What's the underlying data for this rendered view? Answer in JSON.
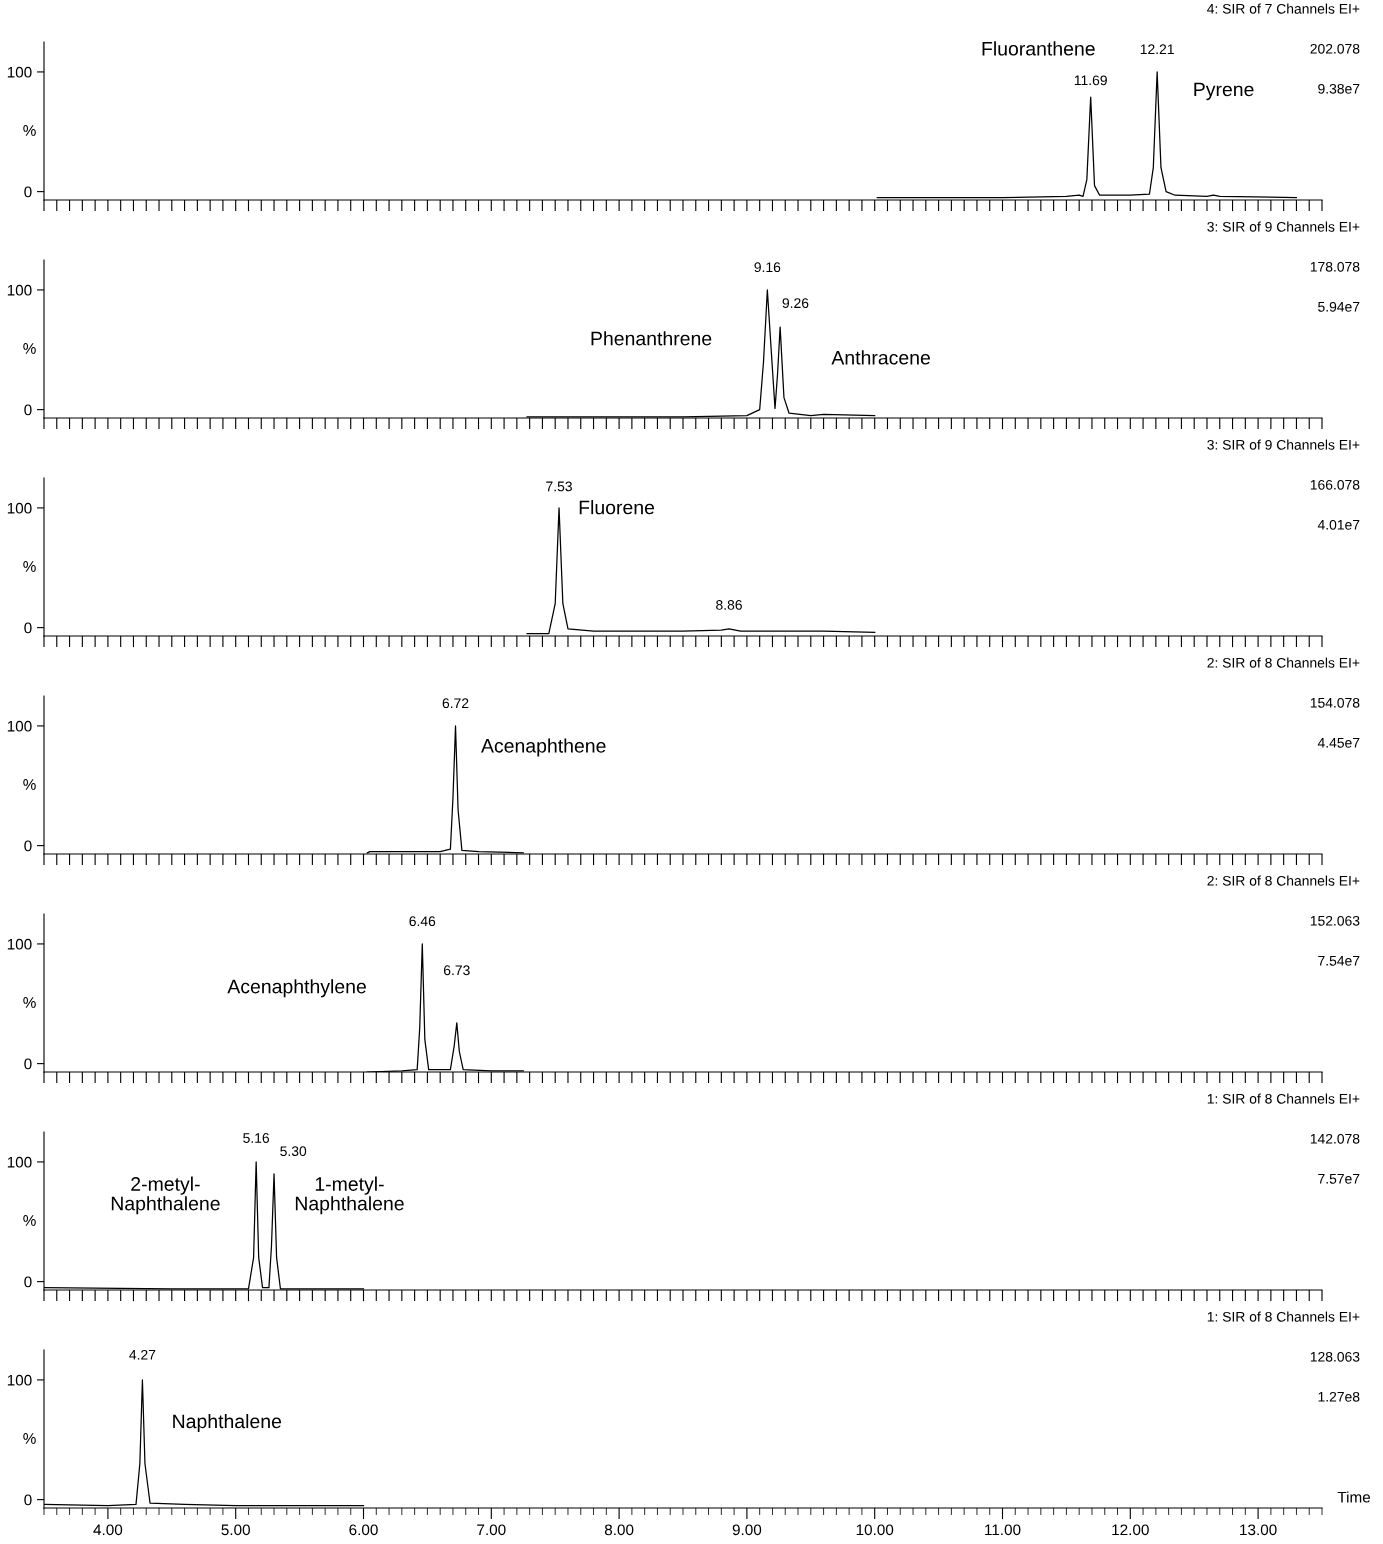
{
  "chart_data": [
    {
      "type": "line",
      "color": "#000000",
      "x": [
        10.02,
        11.0,
        11.5,
        11.6,
        11.63,
        11.66,
        11.69,
        11.72,
        11.76,
        12.0,
        12.15,
        12.18,
        12.21,
        12.24,
        12.28,
        12.35,
        12.6,
        12.65,
        12.7,
        13.3
      ],
      "values": [
        -5,
        -5,
        -4,
        -3,
        -4,
        10,
        79,
        5,
        -3,
        -3,
        -2,
        20,
        100,
        20,
        0,
        -3,
        -4,
        -3,
        -4,
        -5
      ],
      "xlim": [
        3.5,
        13.5
      ],
      "xticks": [
        3.5,
        3.6,
        3.7,
        3.8,
        3.9,
        4,
        4.1,
        4.2,
        4.3,
        4.4,
        4.5,
        4.6,
        4.7,
        4.8,
        4.9,
        5,
        5.1,
        5.2,
        5.3,
        5.4,
        5.5,
        5.6,
        5.7,
        5.8,
        5.9,
        6,
        6.1,
        6.2,
        6.3,
        6.4,
        6.5,
        6.6,
        6.7,
        6.8,
        6.9,
        7,
        7.1,
        7.2,
        7.3,
        7.4,
        7.5,
        7.6,
        7.7,
        7.8,
        7.9,
        8,
        8.1,
        8.2,
        8.3,
        8.4,
        8.5,
        8.6,
        8.7,
        8.8,
        8.9,
        9,
        9.1,
        9.2,
        9.3,
        9.4,
        9.5,
        9.6,
        9.7,
        9.8,
        9.9,
        10,
        10.1,
        10.2,
        10.3,
        10.4,
        10.5,
        10.6,
        10.7,
        10.8,
        10.9,
        11,
        11.1,
        11.2,
        11.3,
        11.4,
        11.5,
        11.6,
        11.7,
        11.8,
        11.9,
        12,
        12.1,
        12.2,
        12.3,
        12.4,
        12.5,
        12.6,
        12.7,
        12.8,
        12.9,
        13,
        13.1,
        13.2,
        13.3,
        13.4,
        13.5
      ],
      "ylim": [
        -7,
        125
      ],
      "yticks": [
        0,
        100
      ],
      "ylabel": "%",
      "tick_labels": "y",
      "annotations": [
        "4: SIR of 7 Channels EI+",
        "202.078",
        "9.38e7",
        "11.69",
        "12.21",
        "Fluoranthene",
        "Pyrene"
      ]
    },
    {
      "type": "line",
      "color": "#000000",
      "x": [
        7.28,
        8.5,
        9.0,
        9.1,
        9.13,
        9.16,
        9.19,
        9.22,
        9.24,
        9.26,
        9.29,
        9.33,
        9.5,
        9.6,
        10.0
      ],
      "values": [
        -6,
        -6,
        -5,
        0,
        40,
        100,
        50,
        1,
        30,
        69,
        10,
        -3,
        -5,
        -4,
        -5
      ],
      "xlim": [
        3.5,
        13.5
      ],
      "xticks": [
        3.5,
        3.6,
        3.7,
        3.8,
        3.9,
        4,
        4.1,
        4.2,
        4.3,
        4.4,
        4.5,
        4.6,
        4.7,
        4.8,
        4.9,
        5,
        5.1,
        5.2,
        5.3,
        5.4,
        5.5,
        5.6,
        5.7,
        5.8,
        5.9,
        6,
        6.1,
        6.2,
        6.3,
        6.4,
        6.5,
        6.6,
        6.7,
        6.8,
        6.9,
        7,
        7.1,
        7.2,
        7.3,
        7.4,
        7.5,
        7.6,
        7.7,
        7.8,
        7.9,
        8,
        8.1,
        8.2,
        8.3,
        8.4,
        8.5,
        8.6,
        8.7,
        8.8,
        8.9,
        9,
        9.1,
        9.2,
        9.3,
        9.4,
        9.5,
        9.6,
        9.7,
        9.8,
        9.9,
        10,
        10.1,
        10.2,
        10.3,
        10.4,
        10.5,
        10.6,
        10.7,
        10.8,
        10.9,
        11,
        11.1,
        11.2,
        11.3,
        11.4,
        11.5,
        11.6,
        11.7,
        11.8,
        11.9,
        12,
        12.1,
        12.2,
        12.3,
        12.4,
        12.5,
        12.6,
        12.7,
        12.8,
        12.9,
        13,
        13.1,
        13.2,
        13.3,
        13.4,
        13.5
      ],
      "ylim": [
        -7,
        125
      ],
      "yticks": [
        0,
        100
      ],
      "ylabel": "%",
      "tick_labels": "y",
      "annotations": [
        "3: SIR of 9 Channels EI+",
        "178.078",
        "5.94e7",
        "9.16",
        "9.26",
        "Phenanthrene",
        "Anthracene"
      ]
    },
    {
      "type": "line",
      "color": "#000000",
      "x": [
        7.28,
        7.45,
        7.5,
        7.53,
        7.56,
        7.6,
        7.8,
        8.5,
        8.8,
        8.86,
        8.95,
        9.6,
        10.0
      ],
      "values": [
        -5,
        -5,
        20,
        100,
        20,
        -1,
        -3,
        -3,
        -2,
        -1,
        -3,
        -3,
        -4
      ],
      "xlim": [
        3.5,
        13.5
      ],
      "xticks": [
        3.5,
        3.6,
        3.7,
        3.8,
        3.9,
        4,
        4.1,
        4.2,
        4.3,
        4.4,
        4.5,
        4.6,
        4.7,
        4.8,
        4.9,
        5,
        5.1,
        5.2,
        5.3,
        5.4,
        5.5,
        5.6,
        5.7,
        5.8,
        5.9,
        6,
        6.1,
        6.2,
        6.3,
        6.4,
        6.5,
        6.6,
        6.7,
        6.8,
        6.9,
        7,
        7.1,
        7.2,
        7.3,
        7.4,
        7.5,
        7.6,
        7.7,
        7.8,
        7.9,
        8,
        8.1,
        8.2,
        8.3,
        8.4,
        8.5,
        8.6,
        8.7,
        8.8,
        8.9,
        9,
        9.1,
        9.2,
        9.3,
        9.4,
        9.5,
        9.6,
        9.7,
        9.8,
        9.9,
        10,
        10.1,
        10.2,
        10.3,
        10.4,
        10.5,
        10.6,
        10.7,
        10.8,
        10.9,
        11,
        11.1,
        11.2,
        11.3,
        11.4,
        11.5,
        11.6,
        11.7,
        11.8,
        11.9,
        12,
        12.1,
        12.2,
        12.3,
        12.4,
        12.5,
        12.6,
        12.7,
        12.8,
        12.9,
        13,
        13.1,
        13.2,
        13.3,
        13.4,
        13.5
      ],
      "ylim": [
        -7,
        125
      ],
      "yticks": [
        0,
        100
      ],
      "ylabel": "%",
      "tick_labels": "y",
      "annotations": [
        "3: SIR of 9 Channels EI+",
        "166.078",
        "4.01e7",
        "7.53",
        "Fluorene",
        "8.86"
      ]
    },
    {
      "type": "line",
      "color": "#000000",
      "x": [
        6.03,
        6.05,
        6.6,
        6.68,
        6.7,
        6.72,
        6.74,
        6.77,
        6.9,
        7.25
      ],
      "values": [
        -6,
        -5,
        -5,
        -3,
        40,
        100,
        30,
        -4,
        -5,
        -6
      ],
      "xlim": [
        3.5,
        13.5
      ],
      "xticks": [
        3.5,
        3.6,
        3.7,
        3.8,
        3.9,
        4,
        4.1,
        4.2,
        4.3,
        4.4,
        4.5,
        4.6,
        4.7,
        4.8,
        4.9,
        5,
        5.1,
        5.2,
        5.3,
        5.4,
        5.5,
        5.6,
        5.7,
        5.8,
        5.9,
        6,
        6.1,
        6.2,
        6.3,
        6.4,
        6.5,
        6.6,
        6.7,
        6.8,
        6.9,
        7,
        7.1,
        7.2,
        7.3,
        7.4,
        7.5,
        7.6,
        7.7,
        7.8,
        7.9,
        8,
        8.1,
        8.2,
        8.3,
        8.4,
        8.5,
        8.6,
        8.7,
        8.8,
        8.9,
        9,
        9.1,
        9.2,
        9.3,
        9.4,
        9.5,
        9.6,
        9.7,
        9.8,
        9.9,
        10,
        10.1,
        10.2,
        10.3,
        10.4,
        10.5,
        10.6,
        10.7,
        10.8,
        10.9,
        11,
        11.1,
        11.2,
        11.3,
        11.4,
        11.5,
        11.6,
        11.7,
        11.8,
        11.9,
        12,
        12.1,
        12.2,
        12.3,
        12.4,
        12.5,
        12.6,
        12.7,
        12.8,
        12.9,
        13,
        13.1,
        13.2,
        13.3,
        13.4,
        13.5
      ],
      "ylim": [
        -7,
        125
      ],
      "yticks": [
        0,
        100
      ],
      "ylabel": "%",
      "tick_labels": "y",
      "annotations": [
        "2: SIR of 8 Channels EI+",
        "154.078",
        "4.45e7",
        "6.72",
        "Acenaphthene"
      ]
    },
    {
      "type": "line",
      "color": "#000000",
      "x": [
        6.03,
        6.3,
        6.42,
        6.44,
        6.46,
        6.48,
        6.51,
        6.68,
        6.71,
        6.73,
        6.75,
        6.78,
        7.0,
        7.25
      ],
      "values": [
        -7,
        -6,
        -5,
        30,
        100,
        20,
        -5,
        -5,
        15,
        34,
        10,
        -5,
        -6,
        -6
      ],
      "xlim": [
        3.5,
        13.5
      ],
      "xticks": [
        3.5,
        3.6,
        3.7,
        3.8,
        3.9,
        4,
        4.1,
        4.2,
        4.3,
        4.4,
        4.5,
        4.6,
        4.7,
        4.8,
        4.9,
        5,
        5.1,
        5.2,
        5.3,
        5.4,
        5.5,
        5.6,
        5.7,
        5.8,
        5.9,
        6,
        6.1,
        6.2,
        6.3,
        6.4,
        6.5,
        6.6,
        6.7,
        6.8,
        6.9,
        7,
        7.1,
        7.2,
        7.3,
        7.4,
        7.5,
        7.6,
        7.7,
        7.8,
        7.9,
        8,
        8.1,
        8.2,
        8.3,
        8.4,
        8.5,
        8.6,
        8.7,
        8.8,
        8.9,
        9,
        9.1,
        9.2,
        9.3,
        9.4,
        9.5,
        9.6,
        9.7,
        9.8,
        9.9,
        10,
        10.1,
        10.2,
        10.3,
        10.4,
        10.5,
        10.6,
        10.7,
        10.8,
        10.9,
        11,
        11.1,
        11.2,
        11.3,
        11.4,
        11.5,
        11.6,
        11.7,
        11.8,
        11.9,
        12,
        12.1,
        12.2,
        12.3,
        12.4,
        12.5,
        12.6,
        12.7,
        12.8,
        12.9,
        13,
        13.1,
        13.2,
        13.3,
        13.4,
        13.5
      ],
      "ylim": [
        -7,
        125
      ],
      "yticks": [
        0,
        100
      ],
      "ylabel": "%",
      "tick_labels": "y",
      "annotations": [
        "2: SIR of 8 Channels EI+",
        "152.063",
        "7.54e7",
        "6.46",
        "6.73",
        "Acenaphthylene"
      ]
    },
    {
      "type": "line",
      "color": "#000000",
      "x": [
        3.5,
        4.5,
        5.1,
        5.14,
        5.16,
        5.18,
        5.21,
        5.26,
        5.28,
        5.3,
        5.32,
        5.35,
        6.0
      ],
      "values": [
        -5,
        -6,
        -6,
        20,
        100,
        20,
        -5,
        -5,
        30,
        90,
        20,
        -6,
        -6
      ],
      "xlim": [
        3.5,
        13.5
      ],
      "xticks": [
        3.5,
        3.6,
        3.7,
        3.8,
        3.9,
        4,
        4.1,
        4.2,
        4.3,
        4.4,
        4.5,
        4.6,
        4.7,
        4.8,
        4.9,
        5,
        5.1,
        5.2,
        5.3,
        5.4,
        5.5,
        5.6,
        5.7,
        5.8,
        5.9,
        6,
        6.1,
        6.2,
        6.3,
        6.4,
        6.5,
        6.6,
        6.7,
        6.8,
        6.9,
        7,
        7.1,
        7.2,
        7.3,
        7.4,
        7.5,
        7.6,
        7.7,
        7.8,
        7.9,
        8,
        8.1,
        8.2,
        8.3,
        8.4,
        8.5,
        8.6,
        8.7,
        8.8,
        8.9,
        9,
        9.1,
        9.2,
        9.3,
        9.4,
        9.5,
        9.6,
        9.7,
        9.8,
        9.9,
        10,
        10.1,
        10.2,
        10.3,
        10.4,
        10.5,
        10.6,
        10.7,
        10.8,
        10.9,
        11,
        11.1,
        11.2,
        11.3,
        11.4,
        11.5,
        11.6,
        11.7,
        11.8,
        11.9,
        12,
        12.1,
        12.2,
        12.3,
        12.4,
        12.5,
        12.6,
        12.7,
        12.8,
        12.9,
        13,
        13.1,
        13.2,
        13.3,
        13.4,
        13.5
      ],
      "ylim": [
        -7,
        125
      ],
      "yticks": [
        0,
        100
      ],
      "ylabel": "%",
      "tick_labels": "y",
      "annotations": [
        "1: SIR of 8 Channels EI+",
        "142.078",
        "7.57e7",
        "5.16",
        "5.30",
        "2-metyl-\nNaphthalene",
        "1-metyl-\nNaphthalene"
      ]
    },
    {
      "type": "line",
      "color": "#000000",
      "x": [
        3.5,
        4.0,
        4.22,
        4.25,
        4.27,
        4.29,
        4.33,
        4.6,
        5.0,
        6.0
      ],
      "values": [
        -4,
        -5,
        -4,
        30,
        100,
        30,
        -3,
        -4,
        -5,
        -5
      ],
      "xlim": [
        3.5,
        13.5
      ],
      "xlabel": "Time",
      "xticks": [
        {
          "value": 3.5,
          "label": null
        },
        {
          "value": 3.6,
          "label": null
        },
        {
          "value": 3.7,
          "label": null
        },
        {
          "value": 3.8,
          "label": null
        },
        {
          "value": 3.9,
          "label": null
        },
        {
          "value": 4,
          "label": "4.00"
        },
        {
          "value": 4.1,
          "label": null
        },
        {
          "value": 4.2,
          "label": null
        },
        {
          "value": 4.3,
          "label": null
        },
        {
          "value": 4.4,
          "label": null
        },
        {
          "value": 4.5,
          "label": null
        },
        {
          "value": 4.6,
          "label": null
        },
        {
          "value": 4.7,
          "label": null
        },
        {
          "value": 4.8,
          "label": null
        },
        {
          "value": 4.9,
          "label": null
        },
        {
          "value": 5,
          "label": "5.00"
        },
        {
          "value": 5.1,
          "label": null
        },
        {
          "value": 5.2,
          "label": null
        },
        {
          "value": 5.3,
          "label": null
        },
        {
          "value": 5.4,
          "label": null
        },
        {
          "value": 5.5,
          "label": null
        },
        {
          "value": 5.6,
          "label": null
        },
        {
          "value": 5.7,
          "label": null
        },
        {
          "value": 5.8,
          "label": null
        },
        {
          "value": 5.9,
          "label": null
        },
        {
          "value": 6,
          "label": "6.00"
        },
        {
          "value": 6.1,
          "label": null
        },
        {
          "value": 6.2,
          "label": null
        },
        {
          "value": 6.3,
          "label": null
        },
        {
          "value": 6.4,
          "label": null
        },
        {
          "value": 6.5,
          "label": null
        },
        {
          "value": 6.6,
          "label": null
        },
        {
          "value": 6.7,
          "label": null
        },
        {
          "value": 6.8,
          "label": null
        },
        {
          "value": 6.9,
          "label": null
        },
        {
          "value": 7,
          "label": "7.00"
        },
        {
          "value": 7.1,
          "label": null
        },
        {
          "value": 7.2,
          "label": null
        },
        {
          "value": 7.3,
          "label": null
        },
        {
          "value": 7.4,
          "label": null
        },
        {
          "value": 7.5,
          "label": null
        },
        {
          "value": 7.6,
          "label": null
        },
        {
          "value": 7.7,
          "label": null
        },
        {
          "value": 7.8,
          "label": null
        },
        {
          "value": 7.9,
          "label": null
        },
        {
          "value": 8,
          "label": "8.00"
        },
        {
          "value": 8.1,
          "label": null
        },
        {
          "value": 8.2,
          "label": null
        },
        {
          "value": 8.3,
          "label": null
        },
        {
          "value": 8.4,
          "label": null
        },
        {
          "value": 8.5,
          "label": null
        },
        {
          "value": 8.6,
          "label": null
        },
        {
          "value": 8.7,
          "label": null
        },
        {
          "value": 8.8,
          "label": null
        },
        {
          "value": 8.9,
          "label": null
        },
        {
          "value": 9,
          "label": "9.00"
        },
        {
          "value": 9.1,
          "label": null
        },
        {
          "value": 9.2,
          "label": null
        },
        {
          "value": 9.3,
          "label": null
        },
        {
          "value": 9.4,
          "label": null
        },
        {
          "value": 9.5,
          "label": null
        },
        {
          "value": 9.6,
          "label": null
        },
        {
          "value": 9.7,
          "label": null
        },
        {
          "value": 9.8,
          "label": null
        },
        {
          "value": 9.9,
          "label": null
        },
        {
          "value": 10,
          "label": "10.00"
        },
        {
          "value": 10.1,
          "label": null
        },
        {
          "value": 10.2,
          "label": null
        },
        {
          "value": 10.3,
          "label": null
        },
        {
          "value": 10.4,
          "label": null
        },
        {
          "value": 10.5,
          "label": null
        },
        {
          "value": 10.6,
          "label": null
        },
        {
          "value": 10.7,
          "label": null
        },
        {
          "value": 10.8,
          "label": null
        },
        {
          "value": 10.9,
          "label": null
        },
        {
          "value": 11,
          "label": "11.00"
        },
        {
          "value": 11.1,
          "label": null
        },
        {
          "value": 11.2,
          "label": null
        },
        {
          "value": 11.3,
          "label": null
        },
        {
          "value": 11.4,
          "label": null
        },
        {
          "value": 11.5,
          "label": null
        },
        {
          "value": 11.6,
          "label": null
        },
        {
          "value": 11.7,
          "label": null
        },
        {
          "value": 11.8,
          "label": null
        },
        {
          "value": 11.9,
          "label": null
        },
        {
          "value": 12,
          "label": "12.00"
        },
        {
          "value": 12.1,
          "label": null
        },
        {
          "value": 12.2,
          "label": null
        },
        {
          "value": 12.3,
          "label": null
        },
        {
          "value": 12.4,
          "label": null
        },
        {
          "value": 12.5,
          "label": null
        },
        {
          "value": 12.6,
          "label": null
        },
        {
          "value": 12.7,
          "label": null
        },
        {
          "value": 12.8,
          "label": null
        },
        {
          "value": 12.9,
          "label": null
        },
        {
          "value": 13,
          "label": "13.00"
        },
        {
          "value": 13.1,
          "label": null
        },
        {
          "value": 13.2,
          "label": null
        },
        {
          "value": 13.3,
          "label": null
        },
        {
          "value": 13.4,
          "label": null
        },
        {
          "value": 13.5,
          "label": null
        }
      ],
      "ylim": [
        -7,
        125
      ],
      "yticks": [
        0,
        100
      ],
      "ylabel": "%",
      "annotations": [
        "1: SIR of 8 Channels EI+",
        "128.063",
        "1.27e8",
        "4.27",
        "Naphthalene"
      ]
    }
  ]
}
